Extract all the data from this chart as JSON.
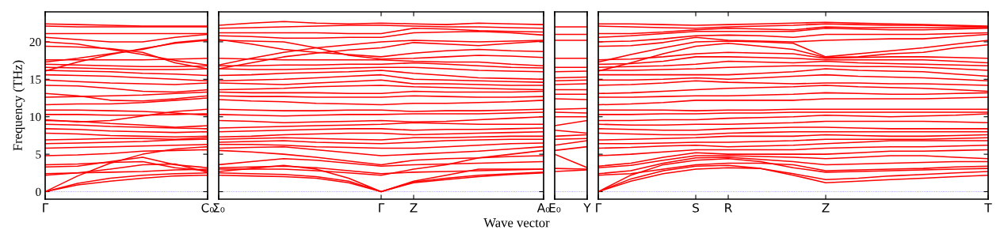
{
  "chart_data": [
    {
      "type": "line",
      "ylabel": "Frequency (THz)",
      "categories": [
        "Γ",
        null,
        null,
        null,
        null,
        "C₀"
      ],
      "ylim": [
        -1,
        24
      ],
      "yticks": [
        0,
        5,
        10,
        15,
        20
      ],
      "ref_lines": [
        {
          "axis": "y",
          "value": 0,
          "color": "#8080ff",
          "line_style": "dotted"
        }
      ],
      "series": [
        {
          "color": "#ff0000",
          "values": [
            0,
            0.9,
            1.4,
            1.8,
            2.1,
            2.2
          ]
        },
        {
          "color": "#ff0000",
          "values": [
            0,
            1.1,
            1.8,
            2.2,
            2.4,
            2.5
          ]
        },
        {
          "color": "#ff0000",
          "values": [
            0,
            2.1,
            3.8,
            5.0,
            5.7,
            6.0
          ]
        },
        {
          "color": "#ff0000",
          "values": [
            2.2,
            2.5,
            3.0,
            3.6,
            3.7,
            2.6
          ]
        },
        {
          "color": "#ff0000",
          "values": [
            2.4,
            2.5,
            2.6,
            2.7,
            2.9,
            3.0
          ]
        },
        {
          "color": "#ff0000",
          "values": [
            3.3,
            3.4,
            4.0,
            4.6,
            3.6,
            3.2
          ]
        },
        {
          "color": "#ff0000",
          "values": [
            3.6,
            3.7,
            3.9,
            4.0,
            3.2,
            2.8
          ]
        },
        {
          "color": "#ff0000",
          "values": [
            4.8,
            4.9,
            5.1,
            5.4,
            5.5,
            5.6
          ]
        },
        {
          "color": "#ff0000",
          "values": [
            5.8,
            5.9,
            6.0,
            6.1,
            6.2,
            6.3
          ]
        },
        {
          "color": "#ff0000",
          "values": [
            6.4,
            6.5,
            6.6,
            6.7,
            6.9,
            7.0
          ]
        },
        {
          "color": "#ff0000",
          "values": [
            6.9,
            7.0,
            7.1,
            7.1,
            7.0,
            7.2
          ]
        },
        {
          "color": "#ff0000",
          "values": [
            7.8,
            7.7,
            7.5,
            7.4,
            7.3,
            7.4
          ]
        },
        {
          "color": "#ff0000",
          "values": [
            8.4,
            8.3,
            8.1,
            8.0,
            7.9,
            8.0
          ]
        },
        {
          "color": "#ff0000",
          "values": [
            9.0,
            8.9,
            8.7,
            8.6,
            8.5,
            8.4
          ]
        },
        {
          "color": "#ff0000",
          "values": [
            9.5,
            9.4,
            9.1,
            8.9,
            8.6,
            8.8
          ]
        },
        {
          "color": "#ff0000",
          "values": [
            9.6,
            9.3,
            9.5,
            10.1,
            10.7,
            11.0
          ]
        },
        {
          "color": "#ff0000",
          "values": [
            10.3,
            10.3,
            10.2,
            10.2,
            10.3,
            10.4
          ]
        },
        {
          "color": "#ff0000",
          "values": [
            10.9,
            10.9,
            10.8,
            10.7,
            10.5,
            10.2
          ]
        },
        {
          "color": "#ff0000",
          "values": [
            11.6,
            11.7,
            11.7,
            11.9,
            12.2,
            12.5
          ]
        },
        {
          "color": "#ff0000",
          "values": [
            12.6,
            12.7,
            12.8,
            12.9,
            13.1,
            13.3
          ]
        },
        {
          "color": "#ff0000",
          "values": [
            13.1,
            12.8,
            12.2,
            12.1,
            12.4,
            12.8
          ]
        },
        {
          "color": "#ff0000",
          "values": [
            14.2,
            14.1,
            13.8,
            13.4,
            13.3,
            13.6
          ]
        },
        {
          "color": "#ff0000",
          "values": [
            14.9,
            14.7,
            14.5,
            14.4,
            14.3,
            14.5
          ]
        },
        {
          "color": "#ff0000",
          "values": [
            15.6,
            15.5,
            15.4,
            15.2,
            15.0,
            14.8
          ]
        },
        {
          "color": "#ff0000",
          "values": [
            16.2,
            16.1,
            16.0,
            15.8,
            15.7,
            15.5
          ]
        },
        {
          "color": "#ff0000",
          "values": [
            16.6,
            16.5,
            16.4,
            16.3,
            16.3,
            16.4
          ]
        },
        {
          "color": "#ff0000",
          "values": [
            17.0,
            16.9,
            16.8,
            16.7,
            16.7,
            16.8
          ]
        },
        {
          "color": "#ff0000",
          "values": [
            17.6,
            17.6,
            17.6,
            17.6,
            17.7,
            17.8
          ]
        },
        {
          "color": "#ff0000",
          "values": [
            16.1,
            17.3,
            18.3,
            19.1,
            19.8,
            20.2
          ]
        },
        {
          "color": "#ff0000",
          "values": [
            17.3,
            17.8,
            18.4,
            19.0,
            19.9,
            20.3
          ]
        },
        {
          "color": "#ff0000",
          "values": [
            19.4,
            19.3,
            19.1,
            18.6,
            17.2,
            16.4
          ]
        },
        {
          "color": "#ff0000",
          "values": [
            20.0,
            19.7,
            19.0,
            18.3,
            17.5,
            16.9
          ]
        },
        {
          "color": "#ff0000",
          "values": [
            20.6,
            20.3,
            20.0,
            20.0,
            20.6,
            21.0
          ]
        },
        {
          "color": "#ff0000",
          "values": [
            21.1,
            21.1,
            21.1,
            21.1,
            21.1,
            21.1
          ]
        },
        {
          "color": "#ff0000",
          "values": [
            22.1,
            22.0,
            22.0,
            22.0,
            22.0,
            22.0
          ]
        },
        {
          "color": "#ff0000",
          "values": [
            22.4,
            22.3,
            22.2,
            22.1,
            22.1,
            22.1
          ]
        }
      ]
    },
    {
      "type": "line",
      "xlabel": "Wave vector",
      "tick_labels": "x",
      "categories": [
        "Σ₀",
        null,
        null,
        null,
        null,
        "Γ",
        "Z",
        null,
        null,
        null,
        "A₀"
      ],
      "ylim": [
        -1,
        24
      ],
      "yticks": [
        0,
        5,
        10,
        15,
        20
      ],
      "ref_lines": [
        {
          "axis": "y",
          "value": 0,
          "color": "#8080ff",
          "line_style": "dotted"
        }
      ],
      "series": [
        {
          "color": "#ff0000",
          "values": [
            2.2,
            2.1,
            2.0,
            1.8,
            1.2,
            0,
            1.2,
            1.6,
            2.0,
            2.3,
            2.5
          ]
        },
        {
          "color": "#ff0000",
          "values": [
            2.5,
            2.4,
            2.3,
            2.0,
            1.4,
            0,
            1.3,
            1.8,
            2.2,
            2.4,
            2.6
          ]
        },
        {
          "color": "#ff0000",
          "values": [
            2.7,
            3.1,
            3.5,
            3.0,
            1.8,
            0,
            1.4,
            2.2,
            3.0,
            3.0,
            3.0
          ]
        },
        {
          "color": "#ff0000",
          "values": [
            3.0,
            3.0,
            3.0,
            2.8,
            2.5,
            2.2,
            3.0,
            3.6,
            4.5,
            5.0,
            5.5
          ]
        },
        {
          "color": "#ff0000",
          "values": [
            3.2,
            3.3,
            3.4,
            3.2,
            2.8,
            2.4,
            2.6,
            2.7,
            2.8,
            2.9,
            3.0
          ]
        },
        {
          "color": "#ff0000",
          "values": [
            3.6,
            4.0,
            4.4,
            4.2,
            3.8,
            3.4,
            3.6,
            3.7,
            3.8,
            3.9,
            4.0
          ]
        },
        {
          "color": "#ff0000",
          "values": [
            5.5,
            5.3,
            5.0,
            4.6,
            4.1,
            3.6,
            4.2,
            4.4,
            4.5,
            4.7,
            4.8
          ]
        },
        {
          "color": "#ff0000",
          "values": [
            5.8,
            5.9,
            6.0,
            5.6,
            5.2,
            4.8,
            5.0,
            5.2,
            5.4,
            5.7,
            6.0
          ]
        },
        {
          "color": "#ff0000",
          "values": [
            6.3,
            6.3,
            6.2,
            6.0,
            5.9,
            5.8,
            5.8,
            6.0,
            6.2,
            6.4,
            6.5
          ]
        },
        {
          "color": "#ff0000",
          "values": [
            6.6,
            6.7,
            6.8,
            6.6,
            6.5,
            6.4,
            6.6,
            6.8,
            6.9,
            7.0,
            7.0
          ]
        },
        {
          "color": "#ff0000",
          "values": [
            7.0,
            7.1,
            7.2,
            7.1,
            7.0,
            6.9,
            7.2,
            7.2,
            7.3,
            7.4,
            7.4
          ]
        },
        {
          "color": "#ff0000",
          "values": [
            7.3,
            7.4,
            7.6,
            7.7,
            7.8,
            7.8,
            7.6,
            7.7,
            7.8,
            7.9,
            8.0
          ]
        },
        {
          "color": "#ff0000",
          "values": [
            8.0,
            8.1,
            8.2,
            8.3,
            8.4,
            8.4,
            8.2,
            8.3,
            8.3,
            8.4,
            8.5
          ]
        },
        {
          "color": "#ff0000",
          "values": [
            8.5,
            8.6,
            8.7,
            8.8,
            8.9,
            9.0,
            9.2,
            9.1,
            9.0,
            9.0,
            9.0
          ]
        },
        {
          "color": "#ff0000",
          "values": [
            9.5,
            9.4,
            9.2,
            9.3,
            9.4,
            9.5,
            9.3,
            9.4,
            9.6,
            9.8,
            10.0
          ]
        },
        {
          "color": "#ff0000",
          "values": [
            10.3,
            10.2,
            10.1,
            10.2,
            10.3,
            10.3,
            10.4,
            10.4,
            10.4,
            10.5,
            10.6
          ]
        },
        {
          "color": "#ff0000",
          "values": [
            11.0,
            10.9,
            10.8,
            10.8,
            10.9,
            10.9,
            10.7,
            10.8,
            10.8,
            10.9,
            11.0
          ]
        },
        {
          "color": "#ff0000",
          "values": [
            12.3,
            12.1,
            12.0,
            11.8,
            11.7,
            11.6,
            11.8,
            11.8,
            11.9,
            12.0,
            12.2
          ]
        },
        {
          "color": "#ff0000",
          "values": [
            12.8,
            12.7,
            12.7,
            12.6,
            12.6,
            12.6,
            12.8,
            12.7,
            12.6,
            12.6,
            12.7
          ]
        },
        {
          "color": "#ff0000",
          "values": [
            13.3,
            13.2,
            13.2,
            13.2,
            13.1,
            13.1,
            13.4,
            13.3,
            13.3,
            13.3,
            13.4
          ]
        },
        {
          "color": "#ff0000",
          "values": [
            13.6,
            13.7,
            13.8,
            14.0,
            14.1,
            14.2,
            14.0,
            13.9,
            13.8,
            13.7,
            13.6
          ]
        },
        {
          "color": "#ff0000",
          "values": [
            14.5,
            14.4,
            14.3,
            14.5,
            14.7,
            14.9,
            14.4,
            14.4,
            14.3,
            14.2,
            14.2
          ]
        },
        {
          "color": "#ff0000",
          "values": [
            14.8,
            14.9,
            15.0,
            15.2,
            15.4,
            15.6,
            15.0,
            14.9,
            14.8,
            14.7,
            14.6
          ]
        },
        {
          "color": "#ff0000",
          "values": [
            15.5,
            15.6,
            15.8,
            15.9,
            16.0,
            16.2,
            15.8,
            15.5,
            15.2,
            15.1,
            15.0
          ]
        },
        {
          "color": "#ff0000",
          "values": [
            16.4,
            16.3,
            16.3,
            16.4,
            16.5,
            16.6,
            16.6,
            16.4,
            16.2,
            16.1,
            16.0
          ]
        },
        {
          "color": "#ff0000",
          "values": [
            16.8,
            16.8,
            16.9,
            16.9,
            17.0,
            17.0,
            17.2,
            17.0,
            16.8,
            16.6,
            16.5
          ]
        },
        {
          "color": "#ff0000",
          "values": [
            17.8,
            17.7,
            17.6,
            17.6,
            17.6,
            17.6,
            17.4,
            17.3,
            17.3,
            17.0,
            16.8
          ]
        },
        {
          "color": "#ff0000",
          "values": [
            20.2,
            20.1,
            20.0,
            19.2,
            18.2,
            17.7,
            17.8,
            18.0,
            18.2,
            18.1,
            17.9
          ]
        },
        {
          "color": "#ff0000",
          "values": [
            20.3,
            19.7,
            19.0,
            18.6,
            18.3,
            18.0,
            18.5,
            18.8,
            19.0,
            18.8,
            18.7
          ]
        },
        {
          "color": "#ff0000",
          "values": [
            16.4,
            17.2,
            18.0,
            18.5,
            18.9,
            19.2,
            19.9,
            19.7,
            19.5,
            19.8,
            20.1
          ]
        },
        {
          "color": "#ff0000",
          "values": [
            16.9,
            17.8,
            18.6,
            19.2,
            19.6,
            20.0,
            20.2,
            20.1,
            20.0,
            20.1,
            20.2
          ]
        },
        {
          "color": "#ff0000",
          "values": [
            20.8,
            20.7,
            20.5,
            20.5,
            20.6,
            20.6,
            21.2,
            21.3,
            21.4,
            21.2,
            20.9
          ]
        },
        {
          "color": "#ff0000",
          "values": [
            21.2,
            21.2,
            21.2,
            21.2,
            21.1,
            21.1,
            21.8,
            21.7,
            21.5,
            21.4,
            21.3
          ]
        },
        {
          "color": "#ff0000",
          "values": [
            22.2,
            22.5,
            22.7,
            22.5,
            22.4,
            22.5,
            22.4,
            22.3,
            22.5,
            22.4,
            22.3
          ]
        },
        {
          "color": "#ff0000",
          "values": [
            21.8,
            21.9,
            22.0,
            22.1,
            22.2,
            22.2,
            22.1,
            22.0,
            22.0,
            21.9,
            21.8
          ]
        }
      ]
    },
    {
      "type": "line",
      "tick_labels": "x",
      "categories": [
        "E₀",
        "Y"
      ],
      "ylim": [
        -1,
        24
      ],
      "yticks": [
        0,
        5,
        10,
        15,
        20
      ],
      "ref_lines": [
        {
          "axis": "y",
          "value": 0,
          "color": "#8080ff",
          "line_style": "dotted"
        }
      ],
      "series": [
        {
          "color": "#ff0000",
          "values": [
            2.7,
            2.9
          ]
        },
        {
          "color": "#ff0000",
          "values": [
            3.1,
            3.0
          ]
        },
        {
          "color": "#ff0000",
          "values": [
            5.0,
            3.2
          ]
        },
        {
          "color": "#ff0000",
          "values": [
            5.5,
            6.0
          ]
        },
        {
          "color": "#ff0000",
          "values": [
            6.2,
            6.8
          ]
        },
        {
          "color": "#ff0000",
          "values": [
            7.0,
            7.1
          ]
        },
        {
          "color": "#ff0000",
          "values": [
            7.4,
            7.6
          ]
        },
        {
          "color": "#ff0000",
          "values": [
            8.2,
            7.8
          ]
        },
        {
          "color": "#ff0000",
          "values": [
            8.8,
            9.5
          ]
        },
        {
          "color": "#ff0000",
          "values": [
            10.0,
            10.0
          ]
        },
        {
          "color": "#ff0000",
          "values": [
            10.6,
            10.5
          ]
        },
        {
          "color": "#ff0000",
          "values": [
            11.0,
            11.1
          ]
        },
        {
          "color": "#ff0000",
          "values": [
            12.4,
            12.3
          ]
        },
        {
          "color": "#ff0000",
          "values": [
            13.0,
            13.0
          ]
        },
        {
          "color": "#ff0000",
          "values": [
            13.6,
            13.6
          ]
        },
        {
          "color": "#ff0000",
          "values": [
            14.3,
            14.4
          ]
        },
        {
          "color": "#ff0000",
          "values": [
            14.8,
            14.9
          ]
        },
        {
          "color": "#ff0000",
          "values": [
            15.2,
            15.3
          ]
        },
        {
          "color": "#ff0000",
          "values": [
            16.0,
            16.1
          ]
        },
        {
          "color": "#ff0000",
          "values": [
            16.6,
            16.6
          ]
        },
        {
          "color": "#ff0000",
          "values": [
            17.8,
            17.8
          ]
        },
        {
          "color": "#ff0000",
          "values": [
            20.2,
            20.2
          ]
        },
        {
          "color": "#ff0000",
          "values": [
            21.0,
            21.0
          ]
        },
        {
          "color": "#ff0000",
          "values": [
            22.0,
            22.0
          ]
        }
      ]
    },
    {
      "type": "line",
      "tick_labels": "x",
      "categories": [
        "Γ",
        null,
        null,
        "S",
        "R",
        null,
        null,
        "Z",
        null,
        null,
        null,
        null,
        "T"
      ],
      "ylim": [
        -1,
        24
      ],
      "yticks": [
        0,
        5,
        10,
        15,
        20
      ],
      "ref_lines": [
        {
          "axis": "y",
          "value": 0,
          "color": "#8080ff",
          "line_style": "dotted"
        }
      ],
      "series": [
        {
          "color": "#ff0000",
          "values": [
            0,
            1.4,
            2.4,
            3.0,
            3.2,
            3.1,
            2.2,
            1.2,
            1.4,
            1.6,
            1.8,
            2.0,
            2.2
          ]
        },
        {
          "color": "#ff0000",
          "values": [
            0,
            1.7,
            2.8,
            3.4,
            3.5,
            3.1,
            2.4,
            1.6,
            1.8,
            2.1,
            2.3,
            2.5,
            2.7
          ]
        },
        {
          "color": "#ff0000",
          "values": [
            0,
            2.2,
            3.6,
            4.2,
            4.4,
            4.0,
            3.2,
            2.6,
            2.7,
            2.8,
            2.9,
            3.0,
            3.1
          ]
        },
        {
          "color": "#ff0000",
          "values": [
            2.2,
            2.4,
            3.0,
            3.6,
            3.8,
            3.8,
            3.6,
            2.8,
            2.9,
            3.0,
            3.1,
            3.3,
            3.4
          ]
        },
        {
          "color": "#ff0000",
          "values": [
            2.4,
            2.8,
            3.8,
            4.5,
            4.6,
            4.3,
            4.0,
            3.6,
            3.7,
            3.8,
            3.9,
            4.0,
            4.0
          ]
        },
        {
          "color": "#ff0000",
          "values": [
            3.2,
            3.5,
            4.2,
            4.8,
            4.8,
            4.7,
            4.6,
            4.4,
            4.6,
            4.8,
            4.8,
            4.6,
            4.4
          ]
        },
        {
          "color": "#ff0000",
          "values": [
            3.4,
            3.8,
            4.6,
            5.2,
            5.0,
            5.0,
            5.0,
            5.0,
            5.2,
            5.4,
            5.4,
            5.5,
            5.6
          ]
        },
        {
          "color": "#ff0000",
          "values": [
            4.8,
            5.0,
            5.3,
            5.6,
            5.6,
            5.6,
            5.6,
            5.8,
            5.9,
            6.0,
            6.0,
            6.1,
            6.2
          ]
        },
        {
          "color": "#ff0000",
          "values": [
            5.8,
            5.9,
            6.1,
            6.2,
            6.0,
            6.1,
            6.2,
            6.4,
            6.6,
            6.8,
            6.8,
            6.8,
            6.8
          ]
        },
        {
          "color": "#ff0000",
          "values": [
            6.4,
            6.4,
            6.5,
            6.6,
            6.6,
            6.7,
            6.8,
            7.0,
            7.0,
            7.0,
            7.0,
            7.1,
            7.2
          ]
        },
        {
          "color": "#ff0000",
          "values": [
            6.9,
            7.0,
            7.1,
            7.2,
            7.4,
            7.4,
            7.4,
            7.6,
            7.5,
            7.4,
            7.4,
            7.5,
            7.6
          ]
        },
        {
          "color": "#ff0000",
          "values": [
            7.8,
            7.7,
            7.6,
            7.6,
            7.8,
            7.9,
            8.0,
            8.0,
            8.0,
            8.0,
            8.0,
            8.0,
            8.0
          ]
        },
        {
          "color": "#ff0000",
          "values": [
            8.4,
            8.3,
            8.2,
            8.2,
            8.4,
            8.5,
            8.6,
            8.6,
            8.5,
            8.4,
            8.4,
            8.4,
            8.4
          ]
        },
        {
          "color": "#ff0000",
          "values": [
            9.0,
            8.9,
            8.9,
            9.0,
            9.0,
            9.1,
            9.2,
            9.4,
            9.4,
            9.4,
            9.4,
            9.3,
            9.2
          ]
        },
        {
          "color": "#ff0000",
          "values": [
            9.5,
            9.5,
            9.6,
            9.6,
            9.8,
            9.9,
            10.0,
            10.2,
            10.1,
            10.0,
            10.1,
            10.2,
            10.4
          ]
        },
        {
          "color": "#ff0000",
          "values": [
            10.3,
            10.3,
            10.4,
            10.4,
            10.5,
            10.5,
            10.6,
            10.6,
            10.6,
            10.6,
            10.6,
            10.6,
            10.6
          ]
        },
        {
          "color": "#ff0000",
          "values": [
            10.9,
            10.9,
            10.9,
            10.8,
            10.9,
            10.9,
            11.0,
            11.0,
            11.0,
            11.0,
            11.0,
            11.0,
            11.0
          ]
        },
        {
          "color": "#ff0000",
          "values": [
            11.6,
            11.7,
            11.9,
            12.2,
            12.2,
            12.2,
            12.2,
            12.4,
            12.4,
            12.4,
            12.4,
            12.5,
            12.6
          ]
        },
        {
          "color": "#ff0000",
          "values": [
            12.6,
            12.6,
            12.7,
            12.8,
            12.8,
            12.9,
            13.0,
            13.2,
            13.1,
            13.0,
            13.0,
            13.1,
            13.2
          ]
        },
        {
          "color": "#ff0000",
          "values": [
            13.1,
            13.2,
            13.4,
            13.6,
            13.8,
            13.9,
            14.0,
            14.2,
            14.0,
            13.9,
            13.8,
            13.6,
            13.4
          ]
        },
        {
          "color": "#ff0000",
          "values": [
            14.2,
            14.3,
            14.5,
            14.8,
            14.6,
            14.5,
            14.4,
            14.5,
            14.5,
            14.4,
            14.4,
            14.3,
            14.2
          ]
        },
        {
          "color": "#ff0000",
          "values": [
            14.9,
            14.9,
            15.0,
            15.2,
            15.0,
            15.2,
            15.4,
            15.6,
            15.4,
            15.3,
            15.2,
            15.0,
            14.8
          ]
        },
        {
          "color": "#ff0000",
          "values": [
            15.6,
            15.6,
            15.6,
            15.6,
            15.6,
            15.8,
            16.0,
            16.4,
            16.2,
            16.1,
            16.0,
            15.7,
            15.4
          ]
        },
        {
          "color": "#ff0000",
          "values": [
            16.2,
            16.2,
            16.3,
            16.4,
            16.6,
            16.7,
            16.8,
            16.8,
            16.7,
            16.7,
            16.6,
            16.4,
            16.2
          ]
        },
        {
          "color": "#ff0000",
          "values": [
            16.6,
            16.7,
            16.8,
            17.0,
            17.4,
            17.3,
            17.2,
            17.4,
            17.2,
            17.1,
            17.0,
            16.9,
            16.8
          ]
        },
        {
          "color": "#ff0000",
          "values": [
            17.0,
            17.1,
            17.4,
            18.0,
            18.0,
            17.9,
            17.8,
            17.6,
            17.6,
            17.6,
            17.6,
            17.4,
            17.2
          ]
        },
        {
          "color": "#ff0000",
          "values": [
            17.6,
            17.7,
            18.0,
            18.4,
            18.6,
            18.5,
            18.4,
            17.8,
            17.9,
            18.0,
            18.0,
            17.9,
            17.8
          ]
        },
        {
          "color": "#ff0000",
          "values": [
            16.1,
            17.2,
            18.4,
            19.4,
            19.8,
            19.4,
            19.0,
            17.9,
            18.0,
            18.4,
            18.6,
            19.2,
            19.6
          ]
        },
        {
          "color": "#ff0000",
          "values": [
            17.3,
            18.3,
            19.2,
            20.0,
            20.1,
            20.0,
            19.8,
            18.0,
            18.4,
            18.8,
            19.2,
            19.7,
            20.2
          ]
        },
        {
          "color": "#ff0000",
          "values": [
            19.4,
            19.5,
            19.9,
            20.6,
            20.2,
            20.1,
            20.0,
            20.2,
            20.3,
            20.4,
            20.4,
            20.7,
            21.0
          ]
        },
        {
          "color": "#ff0000",
          "values": [
            20.0,
            20.1,
            20.4,
            20.8,
            20.9,
            20.8,
            20.6,
            21.0,
            21.0,
            21.0,
            21.0,
            21.1,
            21.2
          ]
        },
        {
          "color": "#ff0000",
          "values": [
            20.6,
            20.8,
            21.1,
            21.4,
            21.4,
            21.4,
            21.4,
            21.8,
            21.7,
            21.6,
            21.6,
            21.7,
            21.8
          ]
        },
        {
          "color": "#ff0000",
          "values": [
            21.1,
            21.1,
            21.3,
            21.6,
            21.8,
            21.7,
            21.6,
            22.0,
            21.9,
            21.9,
            21.9,
            21.9,
            21.9
          ]
        },
        {
          "color": "#ff0000",
          "values": [
            22.1,
            22.0,
            21.9,
            21.8,
            22.0,
            22.1,
            22.2,
            22.4,
            22.3,
            22.2,
            22.2,
            22.1,
            22.0
          ]
        },
        {
          "color": "#ff0000",
          "values": [
            22.4,
            22.4,
            22.3,
            22.2,
            22.3,
            22.4,
            22.5,
            22.6,
            22.5,
            22.4,
            22.3,
            22.2,
            22.1
          ]
        }
      ]
    }
  ]
}
